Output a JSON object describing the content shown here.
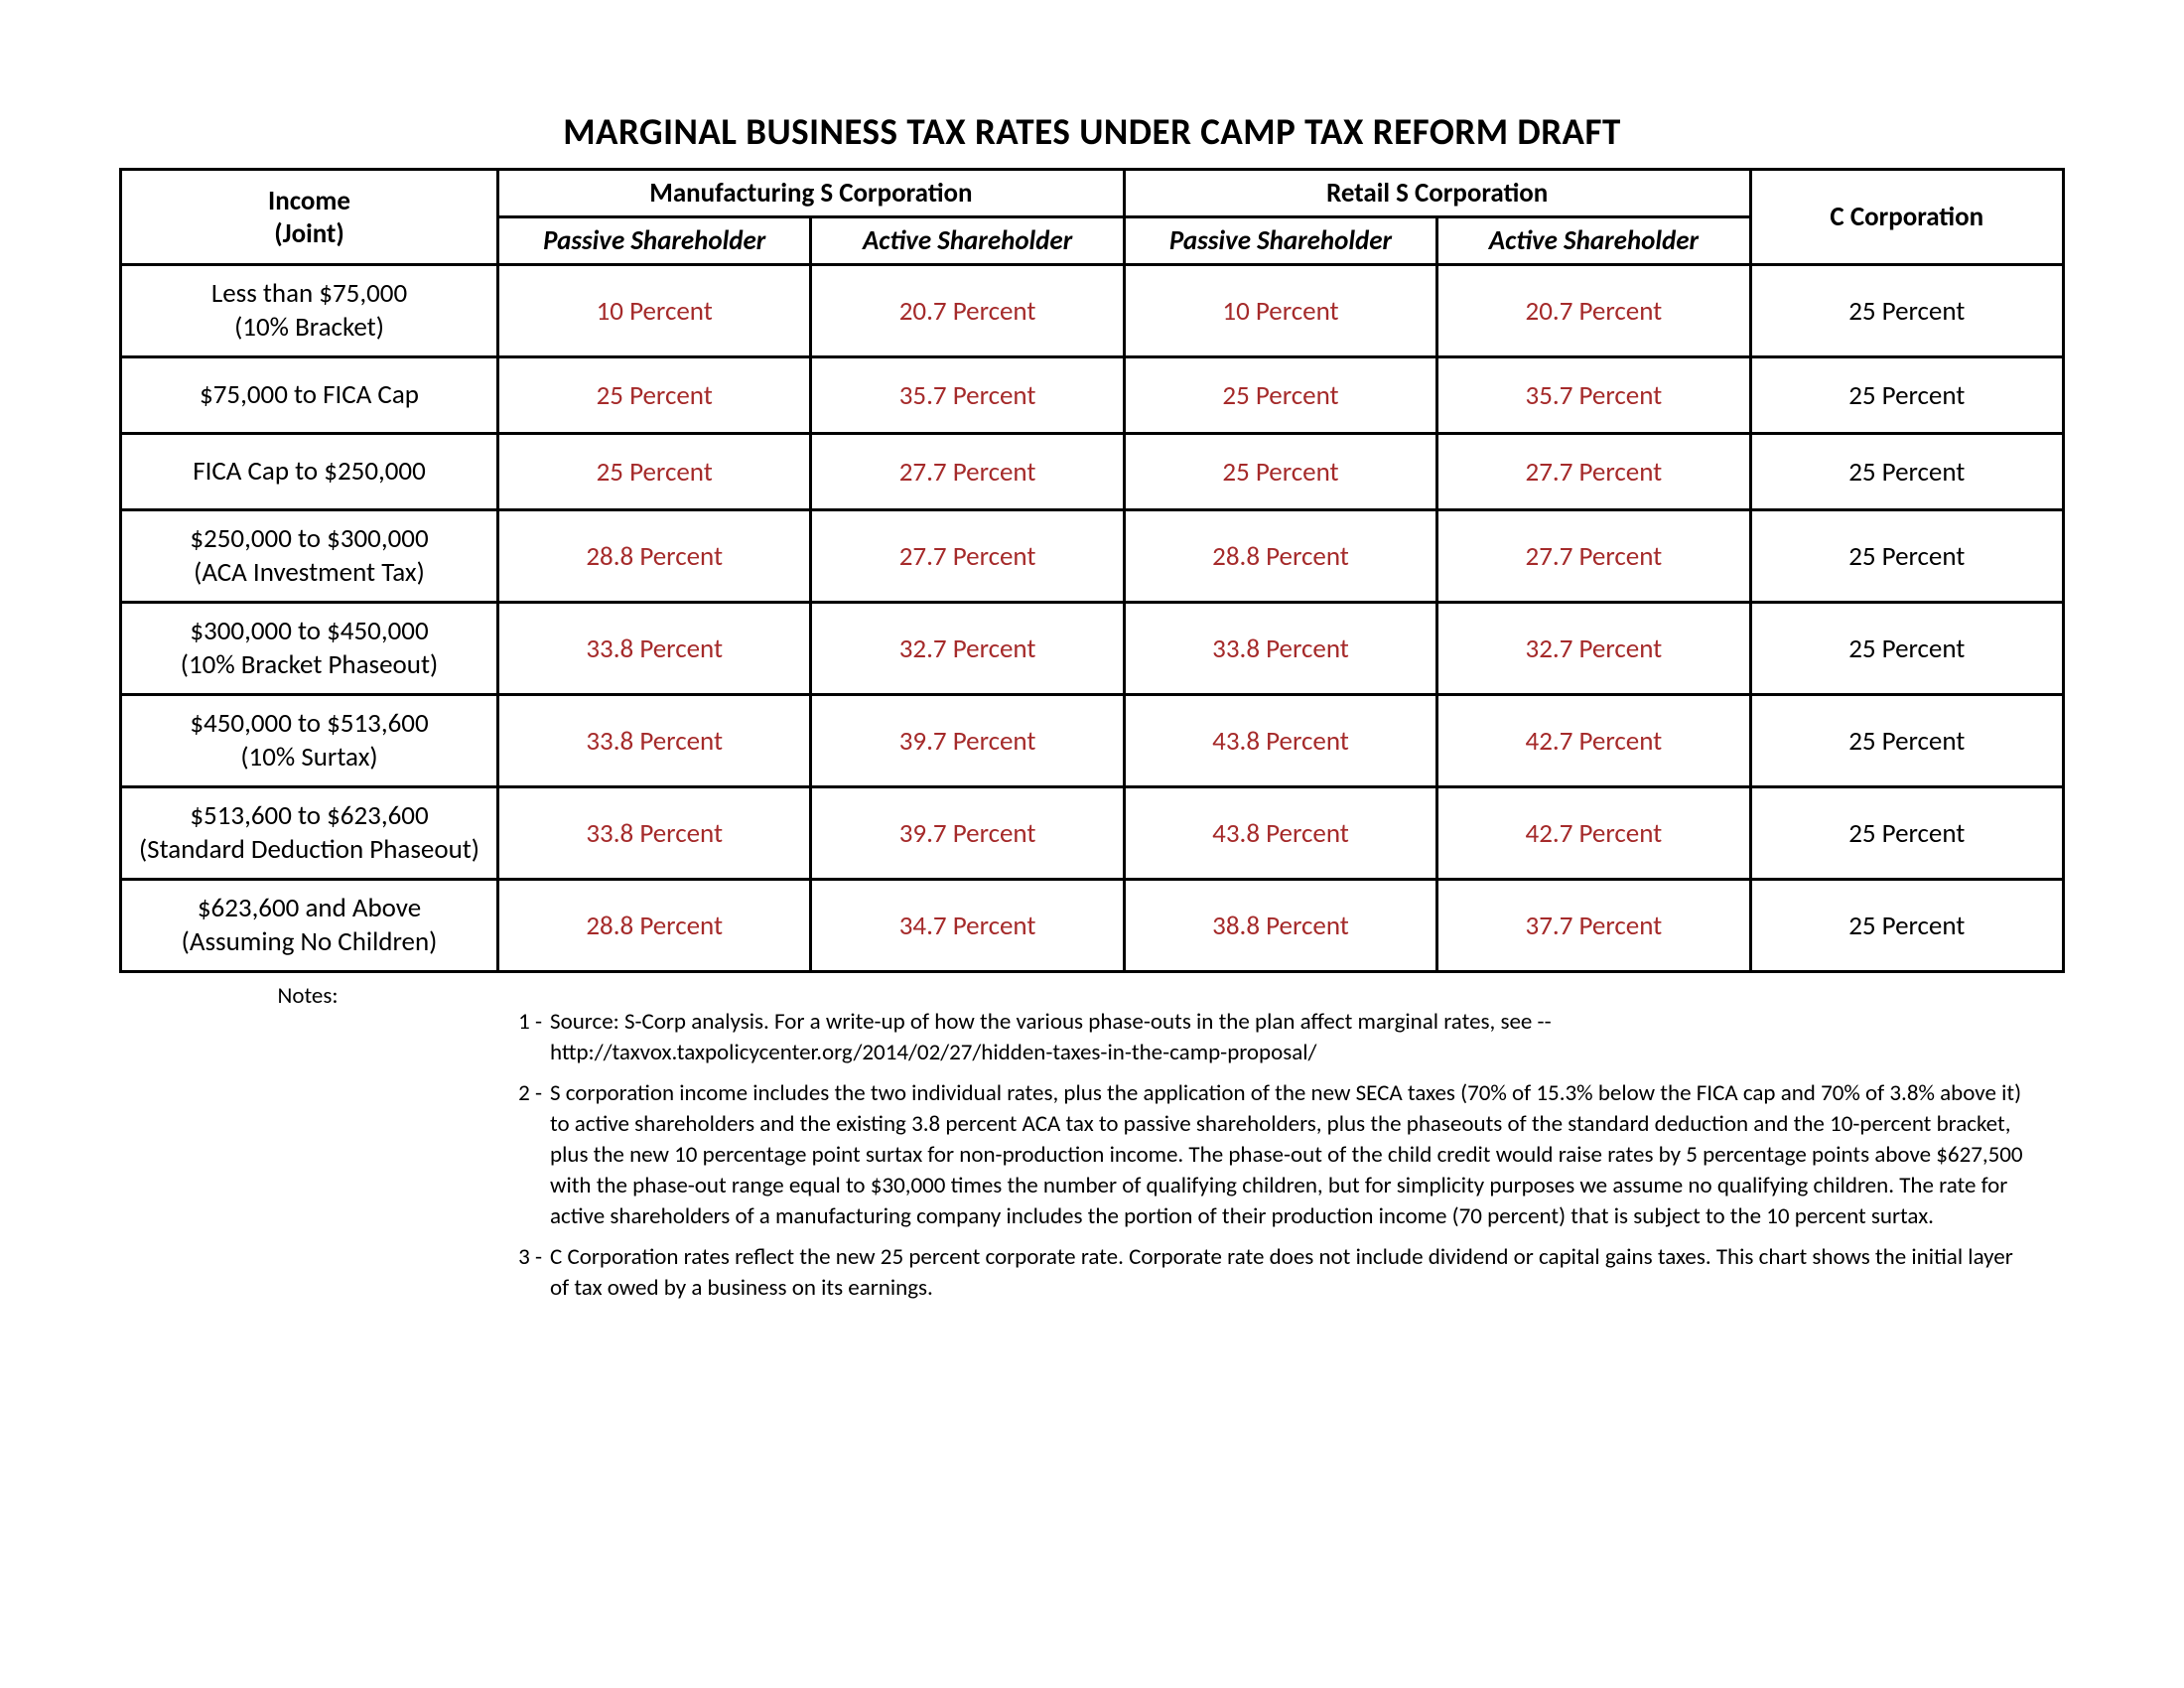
{
  "title": "MARGINAL BUSINESS TAX RATES UNDER CAMP TAX REFORM DRAFT",
  "headers": {
    "income_l1": "Income",
    "income_l2": "(Joint)",
    "mfg": "Manufacturing S Corporation",
    "retail": "Retail S Corporation",
    "ccorp": "C Corporation",
    "passive": "Passive Shareholder",
    "active": "Active Shareholder"
  },
  "rows": [
    {
      "label_l1": "Less than $75,000",
      "label_l2": "(10% Bracket)",
      "mfg_passive": "10 Percent",
      "mfg_active": "20.7 Percent",
      "ret_passive": "10 Percent",
      "ret_active": "20.7 Percent",
      "ccorp": "25 Percent"
    },
    {
      "label_l1": "$75,000 to FICA Cap",
      "label_l2": "",
      "mfg_passive": "25 Percent",
      "mfg_active": "35.7 Percent",
      "ret_passive": "25 Percent",
      "ret_active": "35.7 Percent",
      "ccorp": "25 Percent"
    },
    {
      "label_l1": "FICA Cap to $250,000",
      "label_l2": "",
      "mfg_passive": "25 Percent",
      "mfg_active": "27.7 Percent",
      "ret_passive": "25 Percent",
      "ret_active": "27.7 Percent",
      "ccorp": "25 Percent"
    },
    {
      "label_l1": "$250,000 to $300,000",
      "label_l2": "(ACA Investment Tax)",
      "mfg_passive": "28.8 Percent",
      "mfg_active": "27.7 Percent",
      "ret_passive": "28.8 Percent",
      "ret_active": "27.7 Percent",
      "ccorp": "25 Percent"
    },
    {
      "label_l1": "$300,000 to $450,000",
      "label_l2": "(10% Bracket Phaseout)",
      "mfg_passive": "33.8 Percent",
      "mfg_active": "32.7 Percent",
      "ret_passive": "33.8 Percent",
      "ret_active": "32.7 Percent",
      "ccorp": "25 Percent"
    },
    {
      "label_l1": "$450,000 to $513,600",
      "label_l2": "(10% Surtax)",
      "mfg_passive": "33.8 Percent",
      "mfg_active": "39.7 Percent",
      "ret_passive": "43.8 Percent",
      "ret_active": "42.7 Percent",
      "ccorp": "25 Percent"
    },
    {
      "label_l1": "$513,600 to $623,600",
      "label_l2": "(Standard Deduction Phaseout)",
      "mfg_passive": "33.8 Percent",
      "mfg_active": "39.7 Percent",
      "ret_passive": "43.8 Percent",
      "ret_active": "42.7 Percent",
      "ccorp": "25 Percent"
    },
    {
      "label_l1": "$623,600 and Above",
      "label_l2": "(Assuming No Children)",
      "mfg_passive": "28.8 Percent",
      "mfg_active": "34.7 Percent",
      "ret_passive": "38.8 Percent",
      "ret_active": "37.7 Percent",
      "ccorp": "25 Percent"
    }
  ],
  "notes_label": "Notes:",
  "notes": [
    {
      "num": "1 -",
      "text": "Source:  S-Corp analysis.   For a write-up of how the various phase-outs in the plan affect marginal rates, see -- http://taxvox.taxpolicycenter.org/2014/02/27/hidden-taxes-in-the-camp-proposal/"
    },
    {
      "num": "2 -",
      "text": "S corporation income includes the two individual rates, plus the application of the new SECA taxes (70% of 15.3% below the FICA cap and 70% of 3.8% above it) to active shareholders and the existing 3.8 percent ACA tax to passive shareholders, plus the phaseouts of the standard deduction and the 10-percent bracket, plus the new 10 percentage point surtax for non-production income.  The phase-out of the child credit would raise rates by 5 percentage points above $627,500 with the phase-out range equal to $30,000 times the number of qualifying children, but for simplicity purposes we assume no qualifying children.  The rate for active shareholders of a manufacturing company includes the portion of their production income (70 percent) that is subject to the 10 percent surtax."
    },
    {
      "num": "3 -",
      "text": "C Corporation rates reflect the new 25 percent corporate rate. Corporate rate does not include dividend or capital gains taxes. This chart shows the initial layer of tax owed by a business on its earnings."
    }
  ],
  "style": {
    "rate_color": "#a52a2a",
    "border_color": "#000000",
    "background": "#ffffff",
    "title_fontsize": 37,
    "cell_fontsize": 27,
    "notes_fontsize": 23
  }
}
